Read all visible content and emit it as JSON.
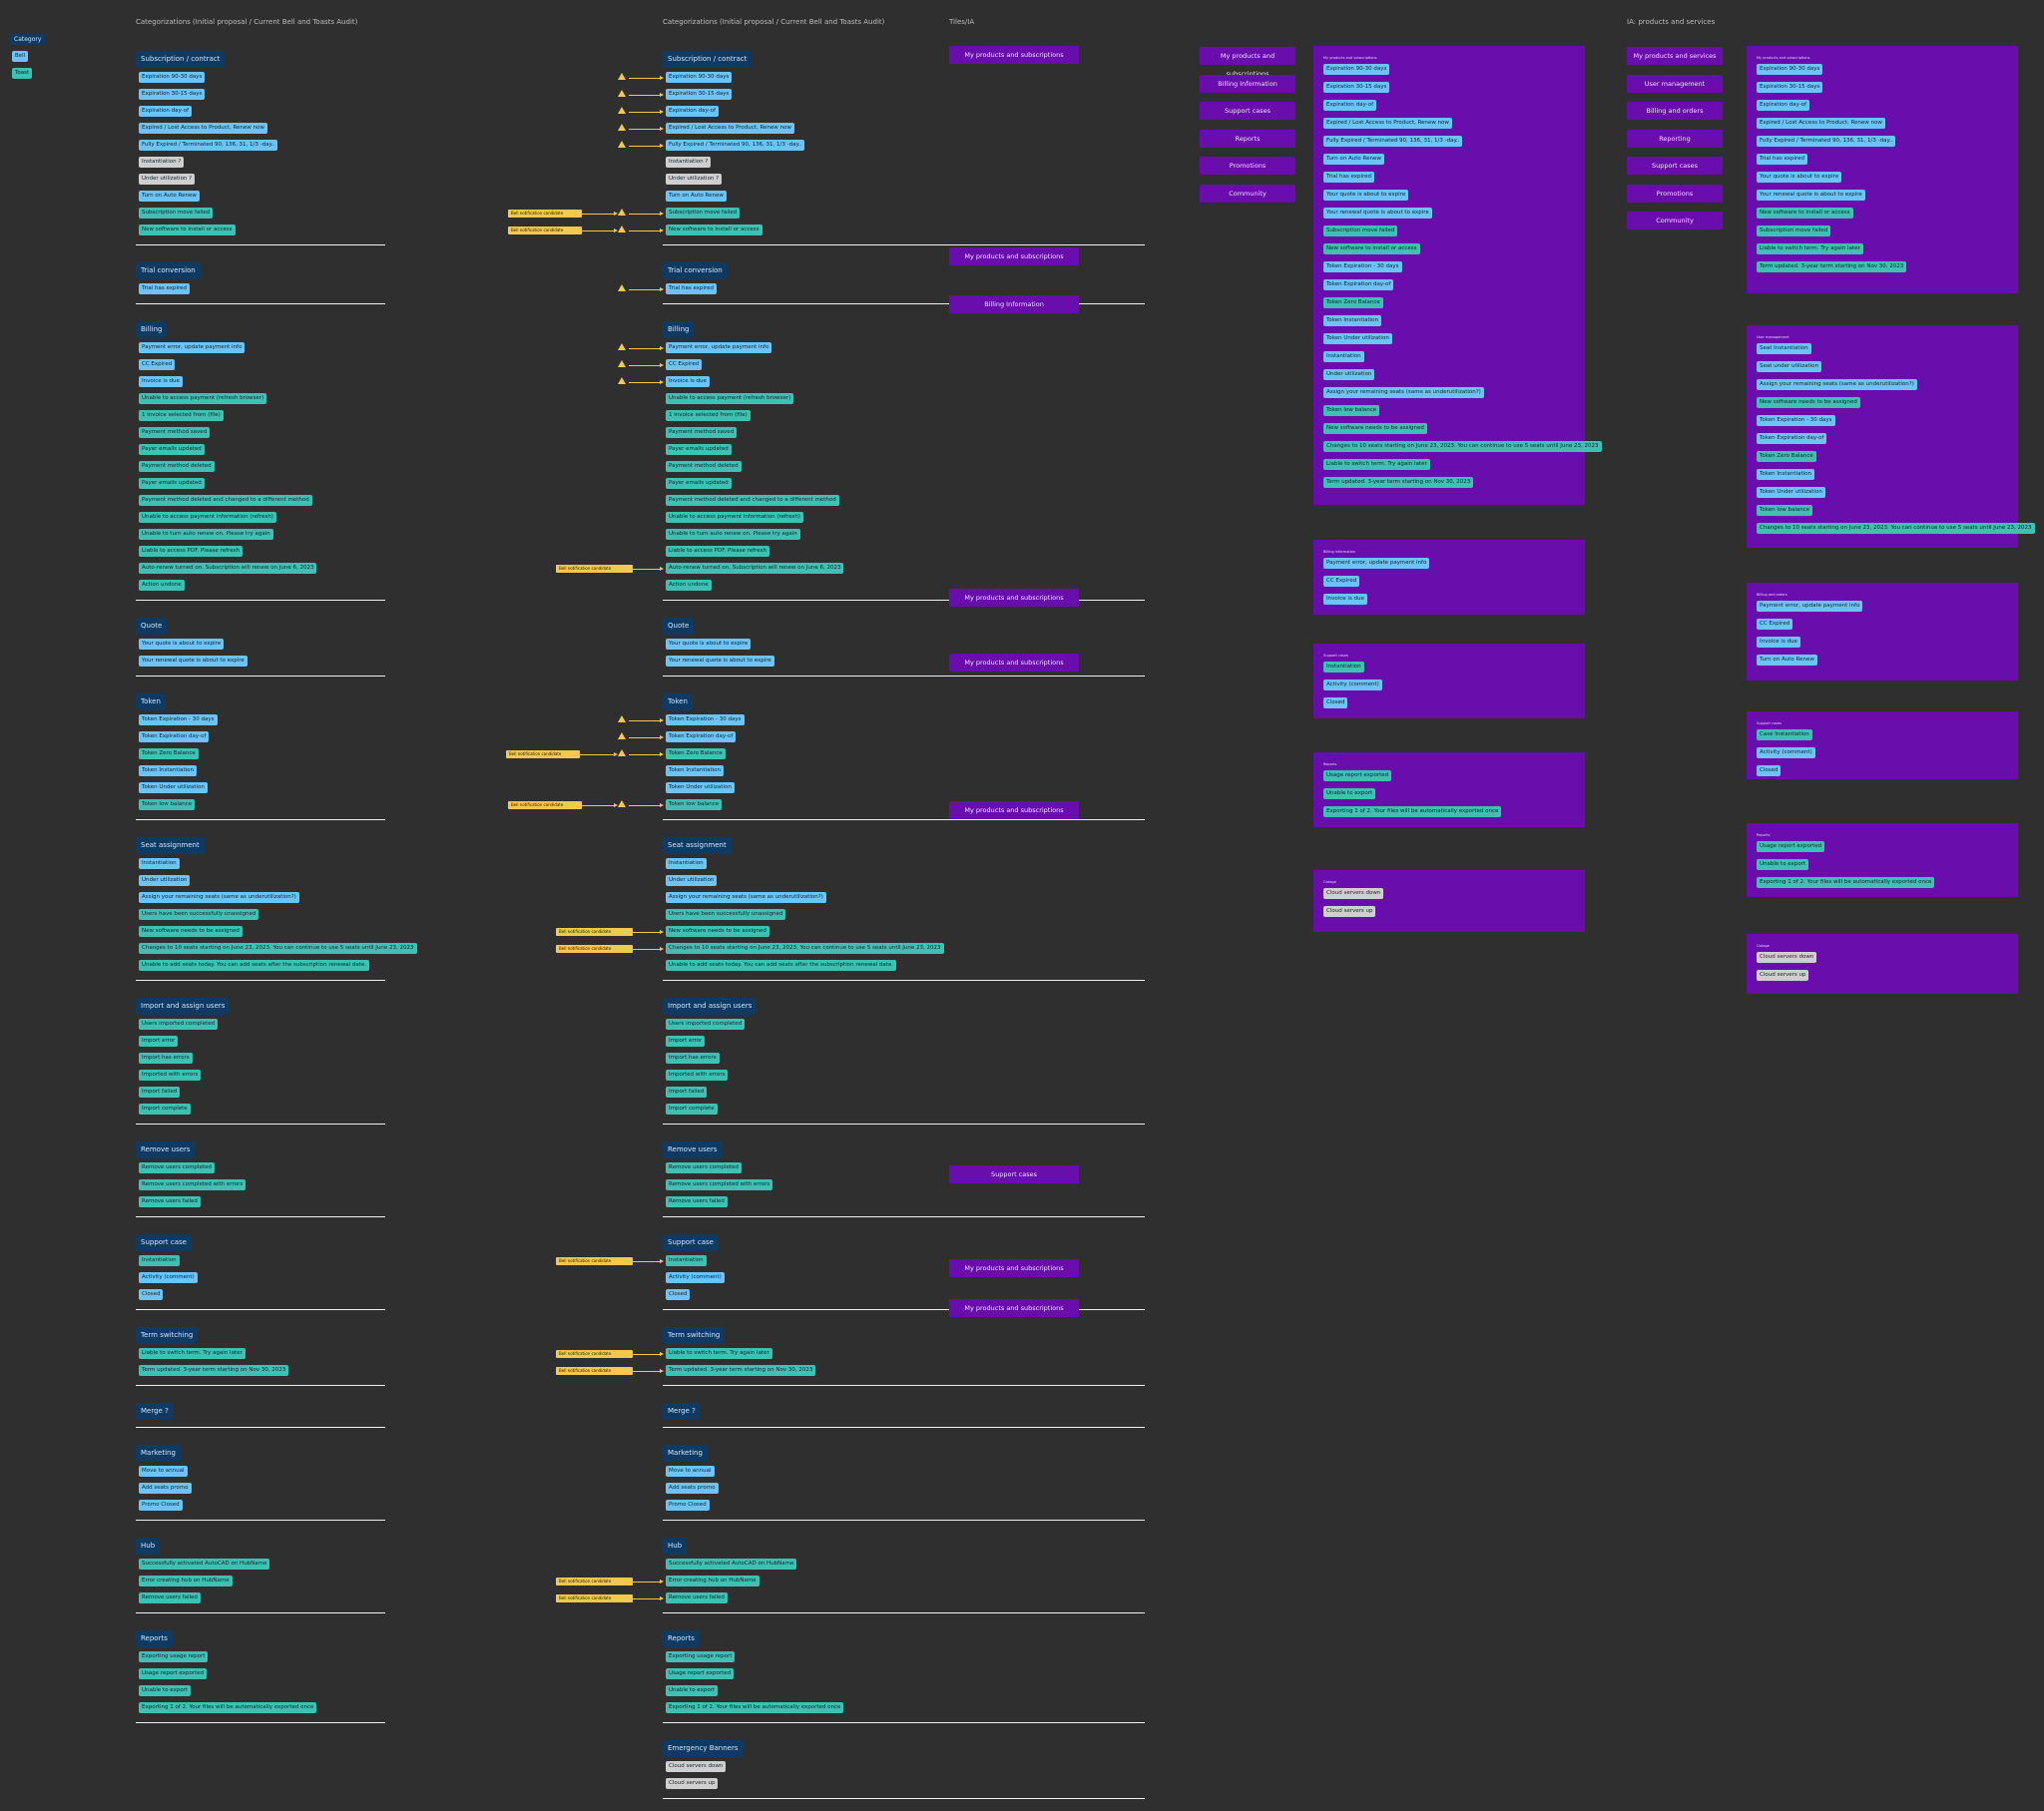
{
  "headings": {
    "col1": "Categorizations (Initial proposal / Current Bell and Toasts Audit)",
    "col2": "Categorizations (Initial proposal / Current Bell and Toasts Audit)",
    "col3": "Tiles/IA",
    "col5": "IA: products and services"
  },
  "legend": {
    "category": "Category",
    "bell": "Bell",
    "toast": "Toast"
  },
  "bell_candidate": "Bell notification candidate",
  "sections": [
    {
      "title": "Subscription / contract",
      "items": [
        {
          "t": "Expiration 90-30 days",
          "c": "b"
        },
        {
          "t": "Expiration 30-15 days",
          "c": "b"
        },
        {
          "t": "Expiration day-of",
          "c": "b"
        },
        {
          "t": "Expired / Lost Access to Product, Renew now",
          "c": "b"
        },
        {
          "t": "Fully Expired / Terminated 90, 136, 31, 1/3 -day..",
          "c": "b"
        },
        {
          "t": "Instantiation ?",
          "c": "g"
        },
        {
          "t": "Under utilization ?",
          "c": "g"
        },
        {
          "t": "Turn on Auto Renew",
          "c": "b"
        },
        {
          "t": "Subscription move failed",
          "c": "t"
        },
        {
          "t": "New software to install or access",
          "c": "t"
        }
      ]
    },
    {
      "title": "Trial conversion",
      "items": [
        {
          "t": "Trial has expired",
          "c": "b"
        }
      ]
    },
    {
      "title": "Billing",
      "items": [
        {
          "t": "Payment error, update payment info",
          "c": "b"
        },
        {
          "t": "CC Expired",
          "c": "b"
        },
        {
          "t": "Invoice is due",
          "c": "b"
        },
        {
          "t": "Unable to access payment (refresh browser)",
          "c": "t"
        },
        {
          "t": "1 invoice selected from (file)",
          "c": "t"
        },
        {
          "t": "Payment method saved",
          "c": "t"
        },
        {
          "t": "Payer emails updated",
          "c": "t"
        },
        {
          "t": "Payment method deleted",
          "c": "t"
        },
        {
          "t": "Payer emails updated",
          "c": "t"
        },
        {
          "t": "Payment method deleted and changed to a different method",
          "c": "t"
        },
        {
          "t": "Unable to access payment information (refresh)",
          "c": "t"
        },
        {
          "t": "Unable to turn auto renew on. Please try again",
          "c": "t"
        },
        {
          "t": "Liable to access PDF. Please refresh",
          "c": "t"
        },
        {
          "t": "Auto-renew turned on. Subscription will renew on June 6, 2023",
          "c": "t"
        },
        {
          "t": "Action undone",
          "c": "t"
        }
      ]
    },
    {
      "title": "Quote",
      "items": [
        {
          "t": "Your quote is about to expire",
          "c": "b"
        },
        {
          "t": "Your renewal quote is about to expire",
          "c": "b"
        }
      ]
    },
    {
      "title": "Token",
      "items": [
        {
          "t": "Token Expiration - 30 days",
          "c": "b"
        },
        {
          "t": "Token Expiration day-of",
          "c": "b"
        },
        {
          "t": "Token Zero Balance",
          "c": "t"
        },
        {
          "t": "Token Instantiation",
          "c": "b"
        },
        {
          "t": "Token Under utilization",
          "c": "b"
        },
        {
          "t": "Token low balance",
          "c": "t"
        }
      ]
    },
    {
      "title": "Seat assignment",
      "items": [
        {
          "t": "Instantiation",
          "c": "b"
        },
        {
          "t": "Under utilization",
          "c": "b"
        },
        {
          "t": "Assign your remaining seats (same as underutilization?)",
          "c": "b"
        },
        {
          "t": "Users have been successfully unassigned",
          "c": "t"
        },
        {
          "t": "New software needs to be assigned",
          "c": "t"
        },
        {
          "t": "Changes to 10 seats starting on June 23, 2023. You can continue to use 5 seats until June 23, 2023",
          "c": "t"
        },
        {
          "t": "Unable to add seats today. You can add seats after the subscription renewal date.",
          "c": "t"
        }
      ]
    },
    {
      "title": "Import and assign users",
      "items": [
        {
          "t": "Users imported completed",
          "c": "t"
        },
        {
          "t": "Import error",
          "c": "t"
        },
        {
          "t": "Import has errors",
          "c": "t"
        },
        {
          "t": "Imported with errors",
          "c": "t"
        },
        {
          "t": "Import failed",
          "c": "t"
        },
        {
          "t": "Import complete",
          "c": "t"
        }
      ]
    },
    {
      "title": "Remove users",
      "items": [
        {
          "t": "Remove users completed",
          "c": "t"
        },
        {
          "t": "Remove users completed with errors",
          "c": "t"
        },
        {
          "t": "Remove users failed",
          "c": "t"
        }
      ]
    },
    {
      "title": "Support case",
      "items": [
        {
          "t": "Instantiation",
          "c": "t"
        },
        {
          "t": "Activity (comment)",
          "c": "b"
        },
        {
          "t": "Closed",
          "c": "b"
        }
      ]
    },
    {
      "title": "Term switching",
      "items": [
        {
          "t": "Liable to switch term. Try again later",
          "c": "t"
        },
        {
          "t": "Term updated. 3-year term starting on Nov 30, 2023",
          "c": "t"
        }
      ]
    },
    {
      "title": "Merge ?",
      "items": []
    },
    {
      "title": "Marketing",
      "items": [
        {
          "t": "Move to annual",
          "c": "b"
        },
        {
          "t": "Add seats promo",
          "c": "b"
        },
        {
          "t": "Promo Closed",
          "c": "b"
        }
      ]
    },
    {
      "title": "Hub",
      "items": [
        {
          "t": "Successfully activated AutoCAD on HubName",
          "c": "t"
        },
        {
          "t": "Error creating hub on HubName",
          "c": "t"
        },
        {
          "t": "Remove users failed",
          "c": "t"
        }
      ]
    },
    {
      "title": "Reports",
      "items": [
        {
          "t": "Exporting usage report",
          "c": "t"
        },
        {
          "t": "Usage report exported",
          "c": "t"
        },
        {
          "t": "Unable to export",
          "c": "t"
        },
        {
          "t": "Exporting 1 of 2. Your files will be automatically exported once",
          "c": "t"
        }
      ]
    }
  ],
  "emergency": {
    "title": "Emergency Banners",
    "items": [
      {
        "t": "Cloud servers down",
        "c": "g"
      },
      {
        "t": "Cloud servers up",
        "c": "g"
      }
    ]
  },
  "tiles": [
    {
      "label": "My products and subscriptions"
    },
    {
      "label": "My products and subscriptions"
    },
    {
      "label": "Billing Information"
    },
    {
      "label": "My products and subscriptions"
    },
    {
      "label": "My products and subscriptions"
    },
    {
      "label": "My products and subscriptions"
    },
    {
      "label": "Support cases"
    },
    {
      "label": "My products and subscriptions"
    },
    {
      "label": "My products and subscriptions"
    }
  ],
  "nav4": [
    "My products and subscriptions",
    "Billing Information",
    "Support cases",
    "Reports",
    "Promotions",
    "Community"
  ],
  "nav5": [
    "My products and services",
    "User management",
    "Billing and orders",
    "Reporting",
    "Support cases",
    "Promotions",
    "Community"
  ],
  "panels4": [
    {
      "title": "My products and subscriptions",
      "items": [
        {
          "t": "Expiration 90-30 days",
          "c": "b"
        },
        {
          "t": "Expiration 30-15 days",
          "c": "b"
        },
        {
          "t": "Expiration day-of",
          "c": "b"
        },
        {
          "t": "Expired / Lost Access to Product, Renew now",
          "c": "b"
        },
        {
          "t": "Fully Expired / Terminated 90, 136, 31, 1/3 -day..",
          "c": "b"
        },
        {
          "t": "Turn on Auto Renew",
          "c": "b"
        },
        {
          "t": "Trial has expired",
          "c": "b"
        },
        {
          "t": "Your quote is about to expire",
          "c": "b"
        },
        {
          "t": "Your renewal quote is about to expire",
          "c": "b"
        },
        {
          "t": "Subscription move failed",
          "c": "t"
        },
        {
          "t": "New software to install or access",
          "c": "t"
        },
        {
          "t": "Token Expiration - 30 days",
          "c": "b"
        },
        {
          "t": "Token Expiration day-of",
          "c": "b"
        },
        {
          "t": "Token Zero Balance",
          "c": "t"
        },
        {
          "t": "Token Instantiation",
          "c": "b"
        },
        {
          "t": "Token Under utilization",
          "c": "b"
        },
        {
          "t": "Instantiation",
          "c": "b"
        },
        {
          "t": "Under utilization",
          "c": "b"
        },
        {
          "t": "Assign your remaining seats (same as underutilization?)",
          "c": "b"
        },
        {
          "t": "Token low balance",
          "c": "t"
        },
        {
          "t": "New software needs to be assigned",
          "c": "t"
        },
        {
          "t": "Changes to 10 seats starting on June 23, 2023. You can continue to use 5 seats until June 23, 2023",
          "c": "t"
        },
        {
          "t": "Liable to switch term. Try again later",
          "c": "t"
        },
        {
          "t": "Term updated. 3-year term starting on Nov 30, 2023",
          "c": "t"
        }
      ]
    },
    {
      "title": "Billing information",
      "items": [
        {
          "t": "Payment error, update payment info",
          "c": "b"
        },
        {
          "t": "CC Expired",
          "c": "b"
        },
        {
          "t": "Invoice is due",
          "c": "b"
        }
      ]
    },
    {
      "title": "Support cases",
      "items": [
        {
          "t": "Instantiation",
          "c": "t"
        },
        {
          "t": "Activity (comment)",
          "c": "b"
        },
        {
          "t": "Closed",
          "c": "b"
        }
      ]
    },
    {
      "title": "Reports",
      "items": [
        {
          "t": "Usage report exported",
          "c": "t"
        },
        {
          "t": "Unable to export",
          "c": "t"
        },
        {
          "t": "Exporting 1 of 2. Your files will be automatically exported once",
          "c": "t"
        }
      ]
    },
    {
      "title": "Outage",
      "items": [
        {
          "t": "Cloud servers down",
          "c": "g"
        },
        {
          "t": "Cloud servers up",
          "c": "g"
        }
      ]
    }
  ],
  "panels5": [
    {
      "title": "My products and subscriptions",
      "items": [
        {
          "t": "Expiration 90-30 days",
          "c": "b"
        },
        {
          "t": "Expiration 30-15 days",
          "c": "b"
        },
        {
          "t": "Expiration day-of",
          "c": "b"
        },
        {
          "t": "Expired / Lost Access to Product, Renew now",
          "c": "b"
        },
        {
          "t": "Fully Expired / Terminated 90, 136, 31, 1/3 -day..",
          "c": "b"
        },
        {
          "t": "Trial has expired",
          "c": "b"
        },
        {
          "t": "Your quote is about to expire",
          "c": "b"
        },
        {
          "t": "Your renewal quote is about to expire",
          "c": "b"
        },
        {
          "t": "New software to install or access",
          "c": "t"
        },
        {
          "t": "Subscription move failed",
          "c": "t"
        },
        {
          "t": "Liable to switch term. Try again later",
          "c": "t"
        },
        {
          "t": "Term updated. 3-year term starting on Nov 30, 2023",
          "c": "t"
        }
      ]
    },
    {
      "title": "User management",
      "items": [
        {
          "t": "Seat Instantiation",
          "c": "b"
        },
        {
          "t": "Seat under utilization",
          "c": "b"
        },
        {
          "t": "Assign your remaining seats (same as underutilization?)",
          "c": "b"
        },
        {
          "t": "New software needs to be assigned",
          "c": "t"
        },
        {
          "t": "Token Expiration - 30 days",
          "c": "b"
        },
        {
          "t": "Token Expiration day-of",
          "c": "b"
        },
        {
          "t": "Token Zero Balance",
          "c": "t"
        },
        {
          "t": "Token Instantiation",
          "c": "b"
        },
        {
          "t": "Token Under utilization",
          "c": "b"
        },
        {
          "t": "Token low balance",
          "c": "t"
        },
        {
          "t": "Changes to 10 seats starting on June 23, 2023. You can continue to use 5 seats until June 23, 2023",
          "c": "t"
        }
      ]
    },
    {
      "title": "Billing and orders",
      "items": [
        {
          "t": "Payment error, update payment info",
          "c": "b"
        },
        {
          "t": "CC Expired",
          "c": "b"
        },
        {
          "t": "Invoice is due",
          "c": "b"
        },
        {
          "t": "Turn on Auto Renew",
          "c": "b"
        }
      ]
    },
    {
      "title": "Support cases",
      "items": [
        {
          "t": "Case Instantiation",
          "c": "t"
        },
        {
          "t": "Activity (comment)",
          "c": "b"
        },
        {
          "t": "Closed",
          "c": "b"
        }
      ]
    },
    {
      "title": "Reports",
      "items": [
        {
          "t": "Usage report exported",
          "c": "t"
        },
        {
          "t": "Unable to export",
          "c": "t"
        },
        {
          "t": "Exporting 1 of 2. Your files will be automatically exported once",
          "c": "t"
        }
      ]
    },
    {
      "title": "Outage",
      "items": [
        {
          "t": "Cloud servers down",
          "c": "g"
        },
        {
          "t": "Cloud servers up",
          "c": "g"
        }
      ]
    }
  ]
}
